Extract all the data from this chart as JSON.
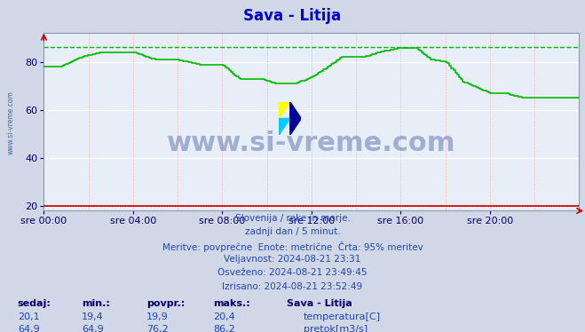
{
  "title": "Sava - Litija",
  "title_color": "#0000cc",
  "bg_color": "#d0d8e8",
  "plot_bg_color": "#e8eef8",
  "xlabel_ticks": [
    "sre 00:00",
    "sre 04:00",
    "sre 08:00",
    "sre 12:00",
    "sre 16:00",
    "sre 20:00"
  ],
  "xlabel_tick_positions": [
    0,
    288,
    576,
    864,
    1152,
    1440
  ],
  "xlim": [
    0,
    1728
  ],
  "ylim": [
    18,
    92
  ],
  "yticks": [
    20,
    40,
    60,
    80
  ],
  "temp_color": "#cc0000",
  "flow_color": "#00bb00",
  "flow_dashed_max": 86.2,
  "temp_dashed_level": 20.0,
  "watermark": "www.si-vreme.com",
  "watermark_color": "#1a3a8a",
  "watermark_alpha": 0.35,
  "subtitle1": "Slovenija / reke in morje.",
  "subtitle2": "zadnji dan / 5 minut.",
  "subtitle3": "Meritve: povprečne  Enote: metrične  Črta: 95% meritev",
  "validity": "Veljavnost: 2024-08-21 23:31",
  "updated": "Osveženo: 2024-08-21 23:49:45",
  "drawn": "Izrisano: 2024-08-21 23:52:49",
  "table_headers": [
    "sedaj:",
    "min.:",
    "povpr.:",
    "maks.:",
    "Sava - Litija"
  ],
  "table_temp": [
    "20,1",
    "19,4",
    "19,9",
    "20,4"
  ],
  "table_flow": [
    "64,9",
    "64,9",
    "76,2",
    "86,2"
  ],
  "legend_temp": "temperatura[C]",
  "legend_flow": "pretok[m3/s]",
  "left_label": "www.si-vreme.com",
  "left_label_color": "#4466aa",
  "logo_colors": [
    "#ffff00",
    "#00ccff",
    "#000099"
  ],
  "text_color": "#2244aa",
  "header_color": "#000066"
}
